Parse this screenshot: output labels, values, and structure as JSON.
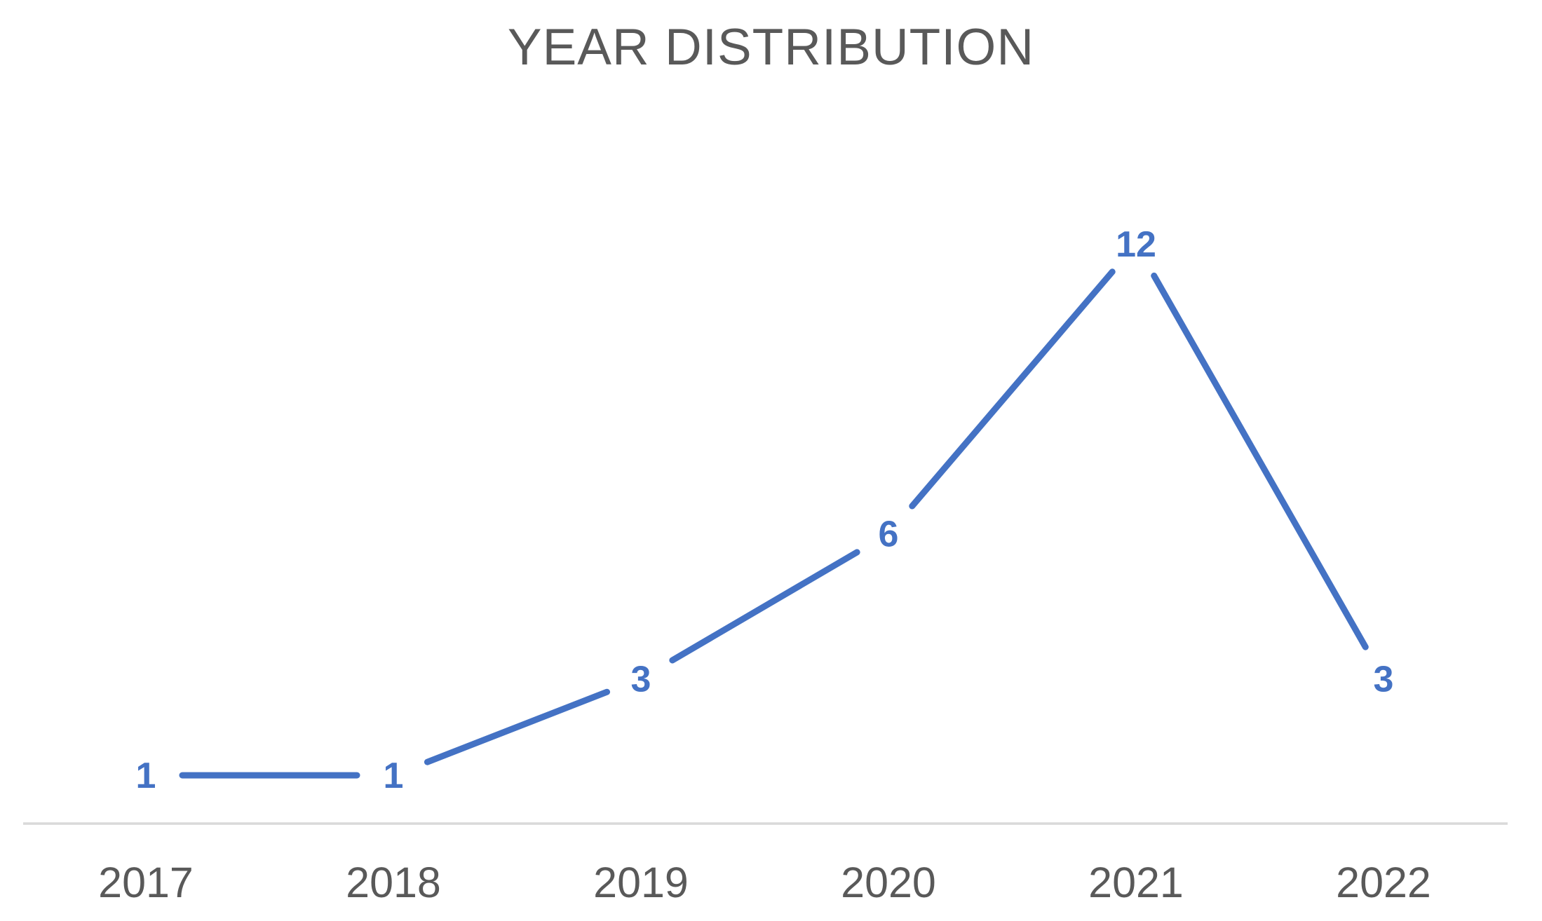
{
  "chart_data": {
    "type": "line",
    "title": "YEAR DISTRIBUTION",
    "categories": [
      "2017",
      "2018",
      "2019",
      "2020",
      "2021",
      "2022"
    ],
    "values": [
      1,
      1,
      3,
      6,
      12,
      3
    ],
    "data_labels_shown": true,
    "xlabel": "",
    "ylabel": "",
    "ylim": [
      0,
      12
    ],
    "grid": false,
    "legend": "none",
    "colors": {
      "series": "#4472C4",
      "data_label": "#4472C4",
      "axis_line": "#D9D9D9",
      "title_text": "#595959",
      "tick_text": "#595959",
      "background": "#FFFFFF"
    }
  }
}
